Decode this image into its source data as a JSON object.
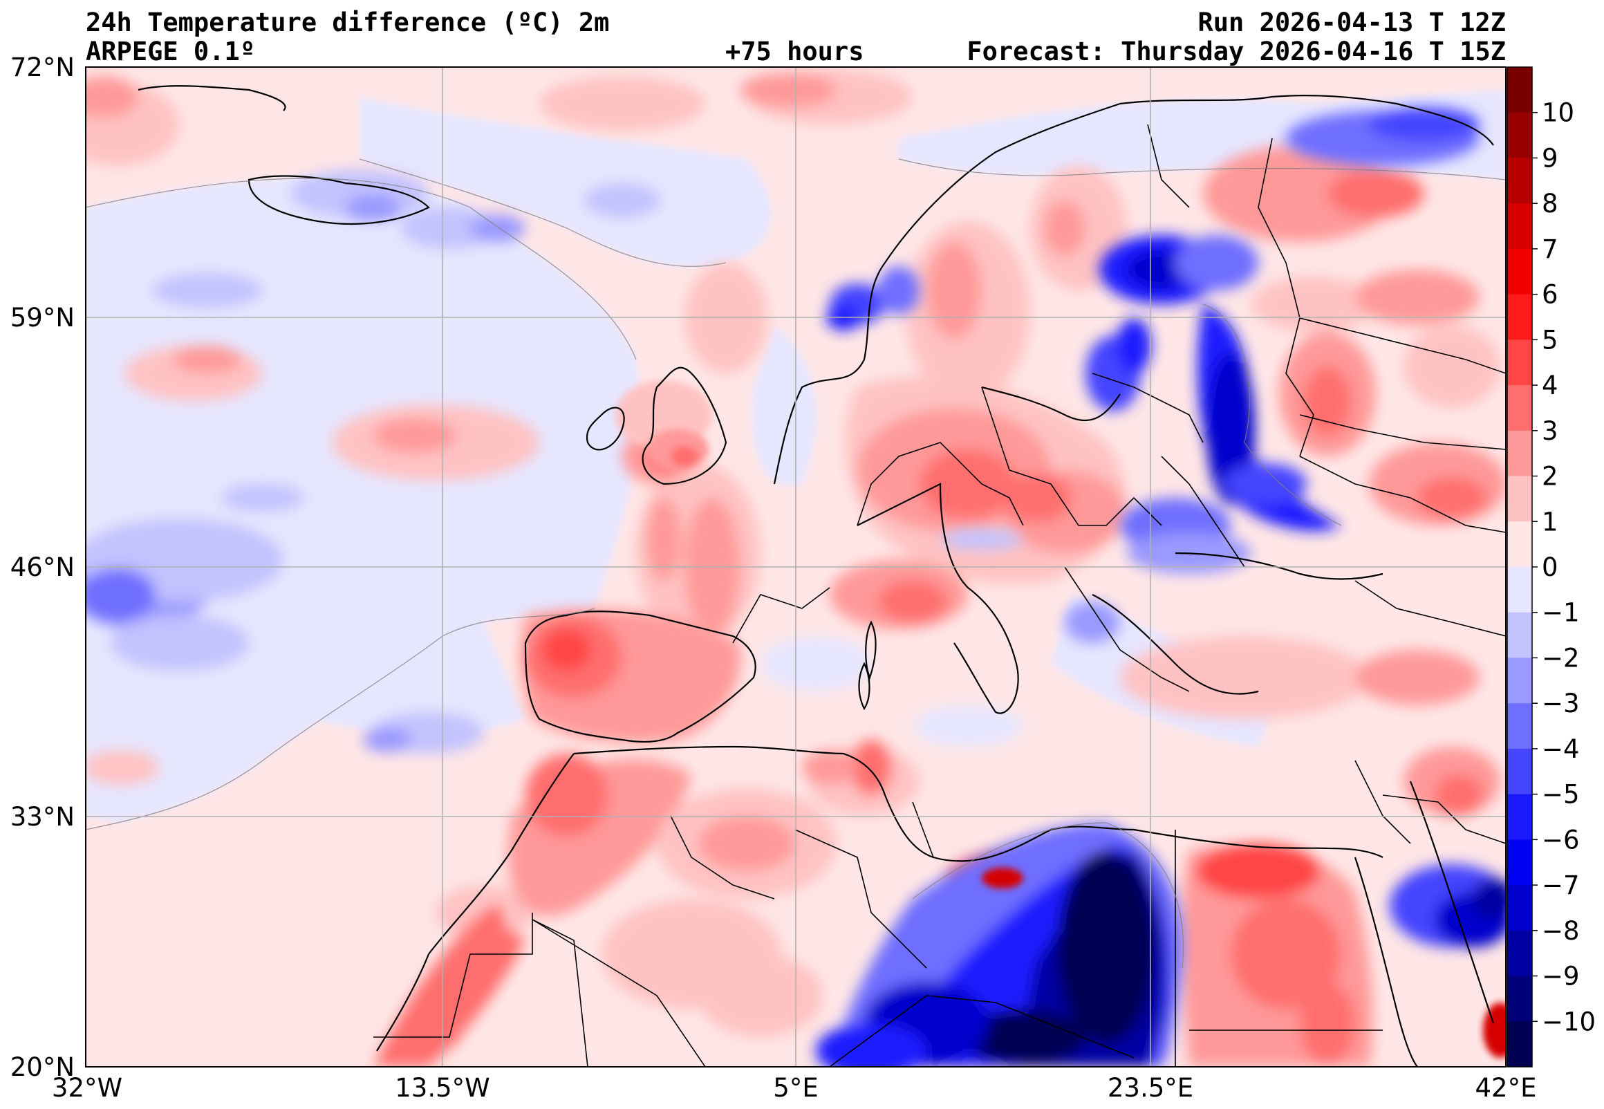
{
  "header": {
    "title": "24h Temperature difference (ºC) 2m",
    "model": "ARPEGE 0.1º",
    "lead_time": "+75 hours",
    "run": "Run 2026-04-13 T 12Z",
    "forecast": "Forecast: Thursday 2026-04-16 T 15Z"
  },
  "map": {
    "lat_labels": [
      "72°N",
      "59°N",
      "46°N",
      "33°N",
      "20°N"
    ],
    "lon_labels": [
      "32°W",
      "13.5°W",
      "5°E",
      "23.5°E",
      "42°E"
    ],
    "lat_range": [
      20,
      72
    ],
    "lon_range": [
      -32,
      42
    ],
    "grid": true
  },
  "colorbar": {
    "tick_labels": [
      "10",
      "9",
      "8",
      "7",
      "6",
      "5",
      "4",
      "3",
      "2",
      "1",
      "0",
      "−1",
      "−2",
      "−3",
      "−4",
      "−5",
      "−6",
      "−7",
      "−8",
      "−9",
      "−10"
    ],
    "colors": [
      "#7a0000",
      "#990000",
      "#b80000",
      "#d60000",
      "#f20000",
      "#ff1a1a",
      "#ff4545",
      "#ff6e6e",
      "#ff9999",
      "#ffc2c2",
      "#ffe6e6",
      "#e6e6ff",
      "#c2c2ff",
      "#9999ff",
      "#6e6eff",
      "#4545ff",
      "#1a1aff",
      "#0000f2",
      "#0000cc",
      "#0000a3",
      "#00007a",
      "#000052"
    ]
  }
}
